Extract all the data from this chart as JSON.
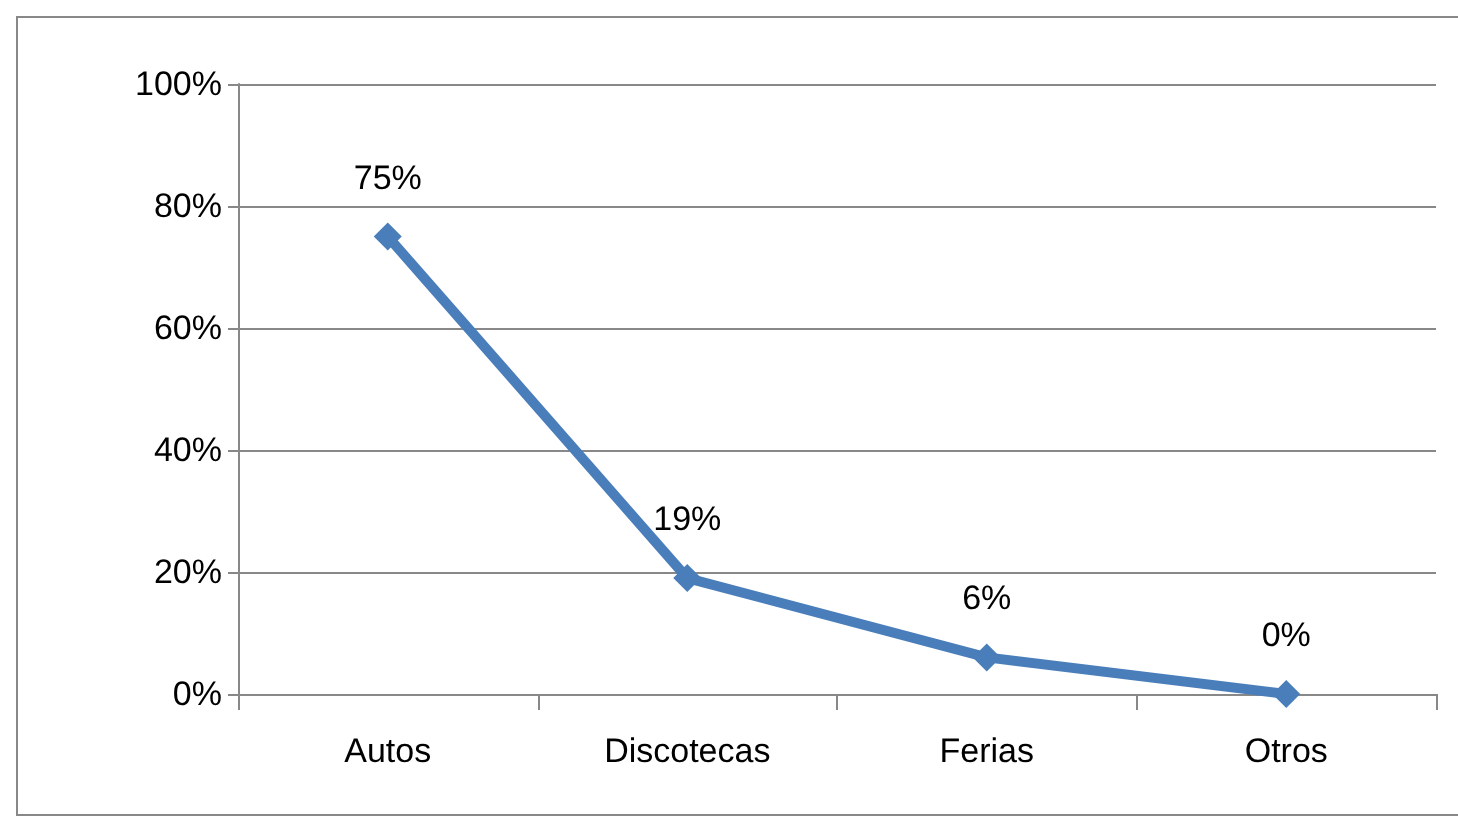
{
  "chart_data": {
    "type": "line",
    "categories": [
      "Autos",
      "Discotecas",
      "Ferias",
      "Otros"
    ],
    "series": [
      {
        "color": "#4a7ebb",
        "values": [
          75,
          19,
          6,
          0
        ],
        "value_labels": [
          "75%",
          "19%",
          "6%",
          "0%"
        ]
      }
    ],
    "ylim": [
      0,
      100
    ],
    "yticks": [
      {
        "value": 0,
        "label": "0%"
      },
      {
        "value": 20,
        "label": "20%"
      },
      {
        "value": 40,
        "label": "40%"
      },
      {
        "value": 60,
        "label": "60%"
      },
      {
        "value": 80,
        "label": "80%"
      },
      {
        "value": 100,
        "label": "100%"
      }
    ],
    "grid": "y",
    "marker": "diamond",
    "line_style": "solid"
  }
}
